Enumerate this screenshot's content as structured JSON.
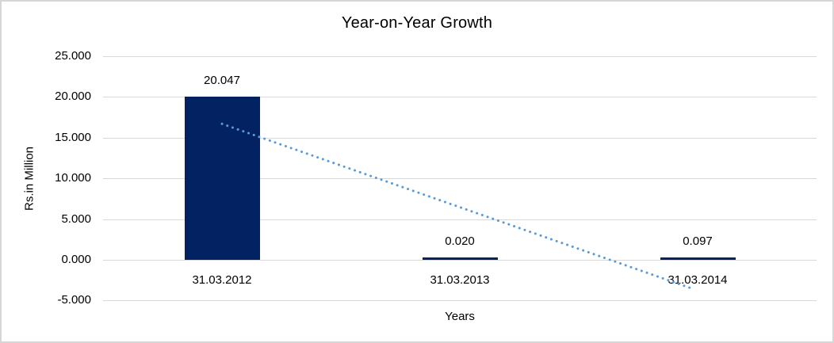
{
  "page": {
    "background_color": "#ffffff",
    "border_color": "#d6d6d6"
  },
  "chart_data": {
    "type": "bar",
    "title": "Year-on-Year Growth",
    "xlabel": "Years",
    "ylabel": "Rs.in Million",
    "categories": [
      "31.03.2012",
      "31.03.2013",
      "31.03.2014"
    ],
    "values": [
      20.047,
      0.02,
      0.097
    ],
    "data_labels": [
      "20.047",
      "0.020",
      "0.097"
    ],
    "ylim": [
      -5,
      25
    ],
    "yticks": [
      25,
      20,
      15,
      10,
      5,
      0,
      -5
    ],
    "ytick_labels": [
      "25.000",
      "20.000",
      "15.000",
      "10.000",
      "5.000",
      "0.000",
      "-5.000"
    ],
    "grid": "horizontal",
    "gridline_color": "#d9d9d9",
    "legend": "none",
    "bar_color": "#022262",
    "trendline": {
      "style": "dotted",
      "color": "#5b9bd5",
      "start": {
        "category_index": 0,
        "value": 16.7
      },
      "end": {
        "category_index": 2,
        "value": -3.6
      }
    }
  }
}
